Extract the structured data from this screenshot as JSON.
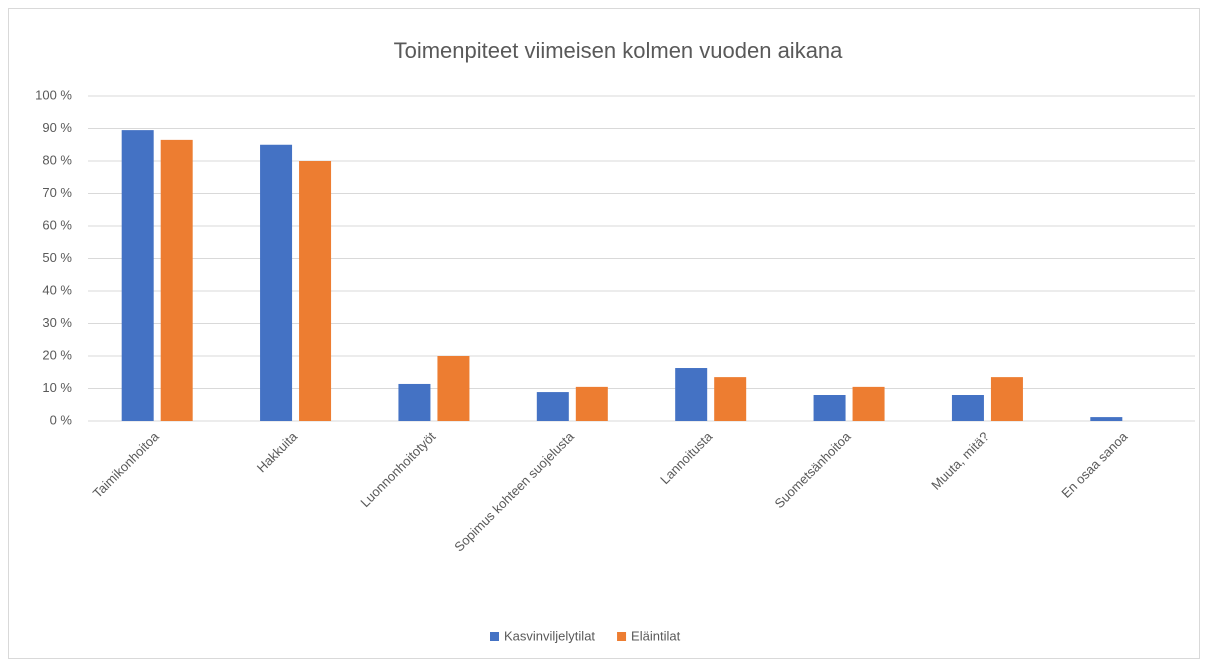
{
  "chart_data": {
    "type": "bar",
    "title": "Toimenpiteet viimeisen kolmen vuoden aikana",
    "categories": [
      "Taimikonhoitoa",
      "Hakkuita",
      "Luonnonhoitotyöt",
      "Sopimus kohteen suojelusta",
      "Lannoitusta",
      "Suometsänhoitoa",
      "Muuta, mitä?",
      "En osaa sanoa"
    ],
    "series": [
      {
        "name": "Kasvinviljelytilat",
        "color": "#4472c4",
        "values": [
          89.5,
          85,
          11.4,
          8.9,
          16.3,
          8,
          8,
          1.2
        ]
      },
      {
        "name": "Eläintilat",
        "color": "#ed7d31",
        "values": [
          86.5,
          80,
          20,
          10.5,
          13.5,
          10.5,
          13.5,
          0
        ]
      }
    ],
    "ylim": [
      0,
      100
    ],
    "yticks": [
      {
        "value": 0,
        "label": "0 %"
      },
      {
        "value": 10,
        "label": "10 %"
      },
      {
        "value": 20,
        "label": "20 %"
      },
      {
        "value": 30,
        "label": "30 %"
      },
      {
        "value": 40,
        "label": "40 %"
      },
      {
        "value": 50,
        "label": "50 %"
      },
      {
        "value": 60,
        "label": "60 %"
      },
      {
        "value": 70,
        "label": "70 %"
      },
      {
        "value": 80,
        "label": "80 %"
      },
      {
        "value": 90,
        "label": "90 %"
      },
      {
        "value": 100,
        "label": "100 %"
      }
    ],
    "grid": true,
    "legend": "bottom"
  }
}
